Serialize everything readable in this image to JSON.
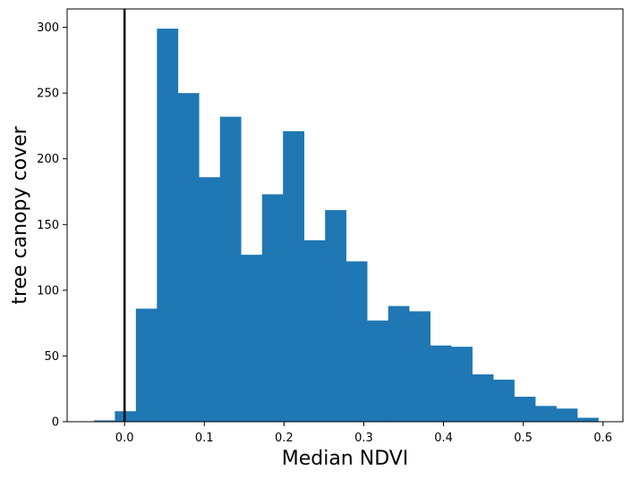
{
  "chart_data": {
    "type": "bar",
    "title": "",
    "xlabel": "Median NDVI",
    "ylabel": "tree canopy cover",
    "xlim": [
      -0.072,
      0.625
    ],
    "ylim": [
      0,
      314
    ],
    "xticks": [
      0.0,
      0.1,
      0.2,
      0.3,
      0.4,
      0.5,
      0.6
    ],
    "xtick_labels": [
      "0.0",
      "0.1",
      "0.2",
      "0.3",
      "0.4",
      "0.5",
      "0.6"
    ],
    "yticks": [
      0,
      50,
      100,
      150,
      200,
      250,
      300
    ],
    "ytick_labels": [
      "0",
      "50",
      "100",
      "150",
      "200",
      "250",
      "300"
    ],
    "bin_edges": [
      -0.0385,
      -0.0121,
      0.0142,
      0.0406,
      0.067,
      0.0933,
      0.1197,
      0.146,
      0.1724,
      0.1987,
      0.2251,
      0.2515,
      0.2778,
      0.3042,
      0.3306,
      0.3569,
      0.3833,
      0.4096,
      0.436,
      0.4624,
      0.4887,
      0.5151,
      0.5414,
      0.5678,
      0.5942
    ],
    "counts": [
      1,
      8,
      86,
      299,
      250,
      186,
      232,
      127,
      173,
      221,
      138,
      161,
      122,
      77,
      88,
      84,
      58,
      57,
      36,
      32,
      19,
      12,
      10,
      3
    ],
    "bar_color": "#1f77b4",
    "vline": {
      "x": 0.0,
      "color": "#000000"
    }
  }
}
